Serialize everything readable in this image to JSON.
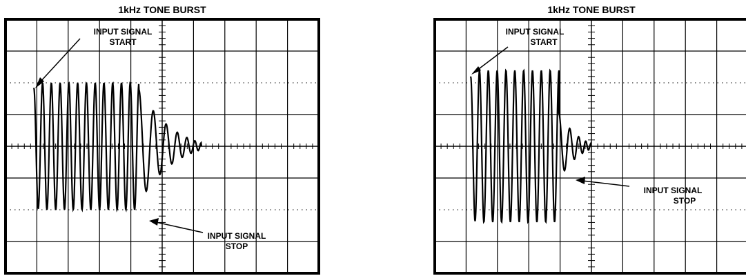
{
  "panels": [
    {
      "title": "1kHz TONE BURST",
      "annotations": {
        "start_line1": "INPUT SIGNAL",
        "start_line2": "START",
        "stop_line1": "INPUT SIGNAL",
        "stop_line2": "STOP"
      },
      "waveform": {
        "burst_cycles": 12,
        "ringdown_cycles": 6
      }
    },
    {
      "title": "1kHz TONE BURST",
      "annotations": {
        "start_line1": "INPUT SIGNAL",
        "start_line2": "START",
        "stop_line1": "INPUT SIGNAL",
        "stop_line2": "STOP"
      },
      "waveform": {
        "burst_cycles": 10,
        "ringdown_cycles": 4
      }
    }
  ],
  "colors": {
    "trace": "#000000",
    "background": "#ffffff"
  }
}
